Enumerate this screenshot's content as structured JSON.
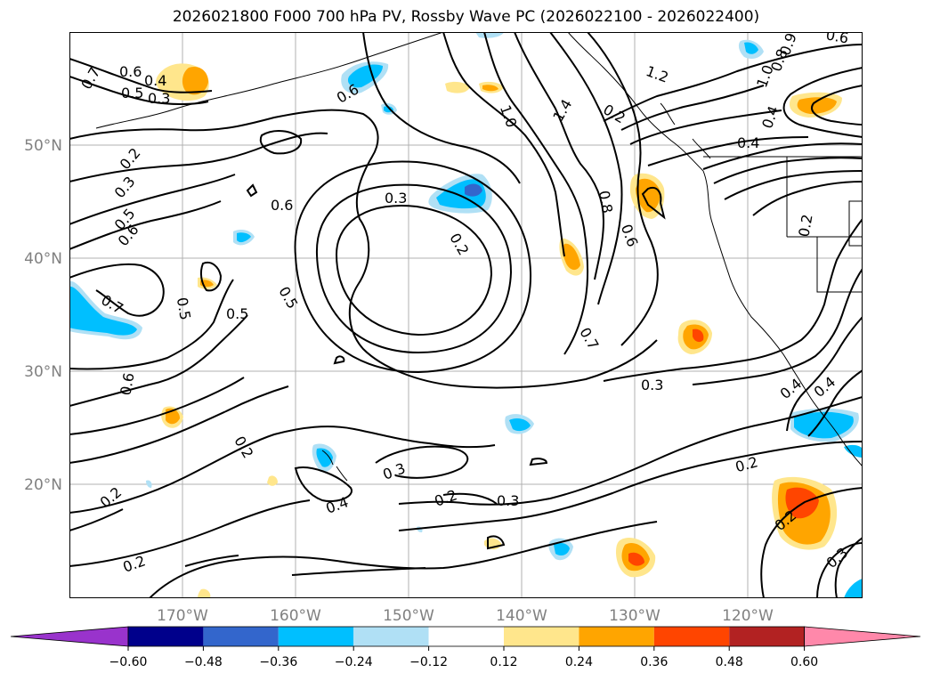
{
  "title": "2026021800 F000 700 hPa PV, Rossby Wave PC (2026022100 - 2026022400)",
  "lat_labels": [
    "50°N",
    "40°N",
    "30°N",
    "20°N"
  ],
  "lon_labels": [
    "170°W",
    "160°W",
    "150°W",
    "140°W",
    "130°W",
    "120°W"
  ],
  "colorbar": {
    "ticks": [
      "−0.60",
      "−0.48",
      "−0.36",
      "−0.24",
      "−0.12",
      "0.12",
      "0.24",
      "0.36",
      "0.48",
      "0.60"
    ],
    "colors": [
      "#9933cc",
      "#00008b",
      "#3366cc",
      "#00bfff",
      "#b0e0f5",
      "#ffffff",
      "#ffe68c",
      "#ffa500",
      "#ff4500",
      "#b22222",
      "#ff88aa"
    ]
  },
  "contour_labels": [
    "0.7",
    "0.6",
    "0.5",
    "0.4",
    "0.3",
    "0.2",
    "0.3",
    "0.5",
    "0.6",
    "0.7",
    "0.6",
    "0.5",
    "0.5",
    "0.5",
    "0.6",
    "0.3",
    "0.2",
    "1.0",
    "1.4",
    "1.2",
    "0.8",
    "0.6",
    "0.7",
    "0.4",
    "0.2",
    "0.4",
    "0.4",
    "0.3",
    "0.2",
    "0.3",
    "0.4",
    "0.3",
    "0.2",
    "0.2",
    "0.2",
    "0.2",
    "0.3",
    "0.2",
    "0.6",
    "1.0",
    "0.8",
    "0.6",
    "0.9",
    "0.4",
    "0.2"
  ]
}
